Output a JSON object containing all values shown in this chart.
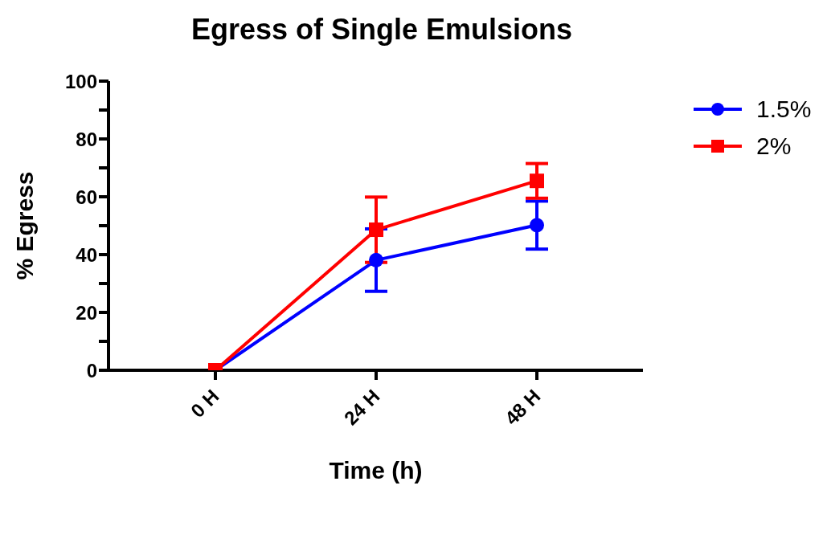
{
  "chart_data": {
    "type": "line",
    "title": "Egress of Single Emulsions",
    "xlabel": "Time (h)",
    "ylabel": "% Egress",
    "categories": [
      "0 H",
      "24 H",
      "48 H"
    ],
    "series": [
      {
        "name": "1.5%",
        "color": "#0000ff",
        "marker": "circle",
        "values": [
          0,
          38.1,
          50.2
        ],
        "errors": [
          null,
          10.8,
          8.3
        ]
      },
      {
        "name": "2%",
        "color": "#ff0000",
        "marker": "square",
        "values": [
          0,
          48.6,
          65.5
        ],
        "errors": [
          null,
          11.3,
          6
        ]
      }
    ],
    "ylim": [
      0,
      100
    ],
    "yticks": [
      0,
      {
        "value": 10,
        "label": null
      },
      20,
      {
        "value": 30,
        "label": null
      },
      40,
      {
        "value": 50,
        "label": null
      },
      60,
      {
        "value": 70,
        "label": null
      },
      80,
      {
        "value": 90,
        "label": null
      },
      100
    ],
    "grid": false,
    "legend": "top right",
    "line_style": "solid"
  }
}
